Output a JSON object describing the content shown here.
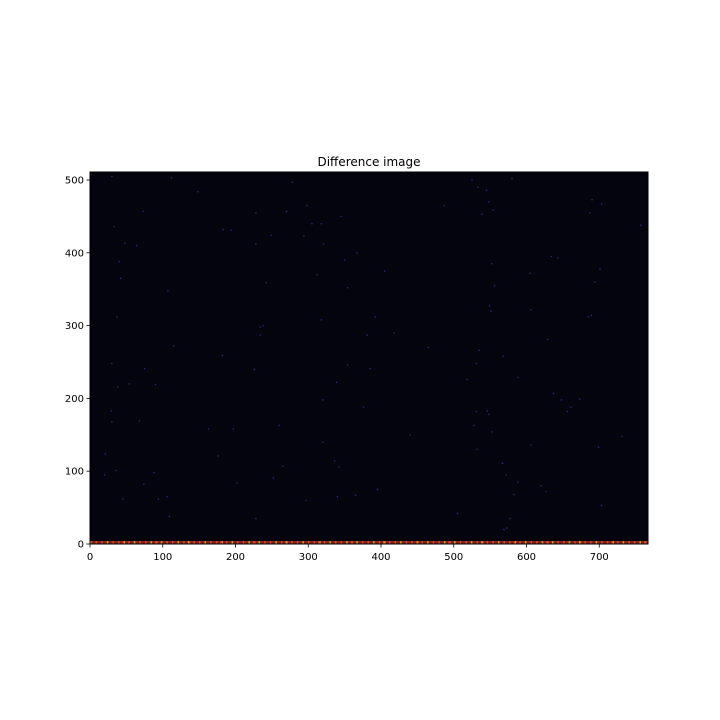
{
  "chart_data": {
    "type": "heatmap",
    "title": "Difference image",
    "xlabel": "",
    "ylabel": "",
    "xlim": [
      0,
      767
    ],
    "ylim": [
      0,
      511
    ],
    "x_ticks": [
      0,
      100,
      200,
      300,
      400,
      500,
      600,
      700
    ],
    "y_ticks": [
      0,
      100,
      200,
      300,
      400,
      500
    ],
    "grid": false,
    "colors": {
      "background": "#04040f",
      "sparse_pixel": "#2e2a8a",
      "bottom_row_hot": "#e8402a",
      "bottom_row_warm": "#c8a020"
    },
    "sparse_points": [
      [
        30,
        505
      ],
      [
        112,
        503
      ],
      [
        278,
        497
      ],
      [
        525,
        500
      ],
      [
        580,
        502
      ],
      [
        148,
        484
      ],
      [
        533,
        490
      ],
      [
        545,
        486
      ],
      [
        298,
        465
      ],
      [
        487,
        465
      ],
      [
        548,
        470
      ],
      [
        690,
        473
      ],
      [
        73,
        457
      ],
      [
        270,
        457
      ],
      [
        228,
        455
      ],
      [
        539,
        453
      ],
      [
        554,
        459
      ],
      [
        687,
        455
      ],
      [
        703,
        467
      ],
      [
        345,
        450
      ],
      [
        305,
        440
      ],
      [
        318,
        440
      ],
      [
        33,
        436
      ],
      [
        183,
        432
      ],
      [
        194,
        431
      ],
      [
        757,
        438
      ],
      [
        48,
        413
      ],
      [
        228,
        412
      ],
      [
        321,
        412
      ],
      [
        64,
        410
      ],
      [
        367,
        400
      ],
      [
        294,
        423
      ],
      [
        249,
        424
      ],
      [
        40,
        388
      ],
      [
        312,
        370
      ],
      [
        405,
        375
      ],
      [
        350,
        390
      ],
      [
        552,
        385
      ],
      [
        634,
        395
      ],
      [
        643,
        393
      ],
      [
        701,
        378
      ],
      [
        42,
        365
      ],
      [
        242,
        359
      ],
      [
        556,
        355
      ],
      [
        354,
        352
      ],
      [
        605,
        372
      ],
      [
        694,
        360
      ],
      [
        107,
        348
      ],
      [
        37,
        312
      ],
      [
        392,
        312
      ],
      [
        318,
        308
      ],
      [
        549,
        327
      ],
      [
        551,
        320
      ],
      [
        606,
        322
      ],
      [
        234,
        298
      ],
      [
        238,
        300
      ],
      [
        381,
        287
      ],
      [
        418,
        290
      ],
      [
        234,
        287
      ],
      [
        629,
        281
      ],
      [
        685,
        312
      ],
      [
        689,
        314
      ],
      [
        115,
        272
      ],
      [
        182,
        259
      ],
      [
        465,
        270
      ],
      [
        568,
        258
      ],
      [
        535,
        266
      ],
      [
        30,
        248
      ],
      [
        354,
        246
      ],
      [
        75,
        241
      ],
      [
        226,
        240
      ],
      [
        385,
        241
      ],
      [
        531,
        248
      ],
      [
        518,
        226
      ],
      [
        588,
        229
      ],
      [
        54,
        220
      ],
      [
        38,
        216
      ],
      [
        339,
        222
      ],
      [
        90,
        219
      ],
      [
        637,
        207
      ],
      [
        656,
        182
      ],
      [
        661,
        188
      ],
      [
        29,
        183
      ],
      [
        320,
        198
      ],
      [
        376,
        188
      ],
      [
        546,
        183
      ],
      [
        531,
        182
      ],
      [
        548,
        178
      ],
      [
        673,
        199
      ],
      [
        648,
        198
      ],
      [
        68,
        169
      ],
      [
        30,
        168
      ],
      [
        260,
        163
      ],
      [
        163,
        158
      ],
      [
        197,
        158
      ],
      [
        528,
        163
      ],
      [
        553,
        154
      ],
      [
        440,
        150
      ],
      [
        731,
        148
      ],
      [
        320,
        140
      ],
      [
        606,
        136
      ],
      [
        699,
        133
      ],
      [
        532,
        130
      ],
      [
        21,
        124
      ],
      [
        176,
        121
      ],
      [
        336,
        114
      ],
      [
        342,
        106
      ],
      [
        265,
        107
      ],
      [
        567,
        111
      ],
      [
        36,
        101
      ],
      [
        88,
        98
      ],
      [
        20,
        95
      ],
      [
        252,
        91
      ],
      [
        572,
        95
      ],
      [
        74,
        82
      ],
      [
        202,
        84
      ],
      [
        588,
        85
      ],
      [
        620,
        80
      ],
      [
        395,
        75
      ],
      [
        627,
        72
      ],
      [
        45,
        62
      ],
      [
        94,
        62
      ],
      [
        106,
        65
      ],
      [
        297,
        60
      ],
      [
        365,
        67
      ],
      [
        340,
        65
      ],
      [
        583,
        68
      ],
      [
        703,
        53
      ],
      [
        505,
        42
      ],
      [
        109,
        38
      ],
      [
        228,
        35
      ],
      [
        577,
        35
      ],
      [
        569,
        20
      ],
      [
        573,
        22
      ]
    ]
  }
}
